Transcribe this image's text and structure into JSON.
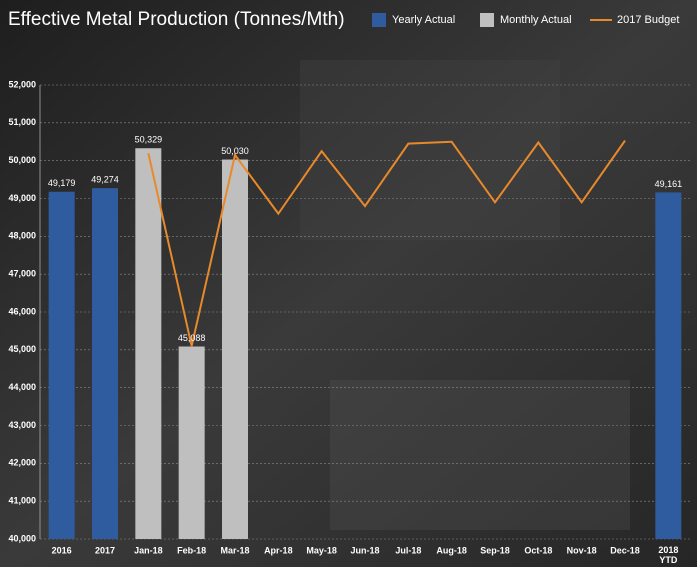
{
  "chart_data": {
    "type": "bar",
    "title": "Effective Metal Production (Tonnes/Mth)",
    "categories": [
      "2016",
      "2017",
      "Jan-18",
      "Feb-18",
      "Mar-18",
      "Apr-18",
      "May-18",
      "Jun-18",
      "Jul-18",
      "Aug-18",
      "Sep-18",
      "Oct-18",
      "Nov-18",
      "Dec-18",
      "2018 YTD"
    ],
    "series": [
      {
        "name": "Yearly Actual",
        "type": "bar",
        "color": "#2e5c9e",
        "values": [
          49179,
          49274,
          null,
          null,
          null,
          null,
          null,
          null,
          null,
          null,
          null,
          null,
          null,
          null,
          49161
        ],
        "value_labels": [
          "49,179",
          "49,274",
          null,
          null,
          null,
          null,
          null,
          null,
          null,
          null,
          null,
          null,
          null,
          null,
          "49,161"
        ]
      },
      {
        "name": "Monthly Actual",
        "type": "bar",
        "color": "#bfbfbf",
        "values": [
          null,
          null,
          50329,
          45088,
          50030,
          null,
          null,
          null,
          null,
          null,
          null,
          null,
          null,
          null,
          null
        ],
        "value_labels": [
          null,
          null,
          "50,329",
          "45,088",
          "50,030",
          null,
          null,
          null,
          null,
          null,
          null,
          null,
          null,
          null,
          null
        ]
      },
      {
        "name": "2017 Budget",
        "type": "line",
        "color": "#e8892b",
        "values": [
          null,
          null,
          50200,
          45100,
          50150,
          48600,
          50250,
          48800,
          50450,
          50500,
          48900,
          50480,
          48900,
          50530,
          null
        ]
      }
    ],
    "ylim": [
      40000,
      52000
    ],
    "yticks": [
      {
        "value": 40000,
        "label": "40,000"
      },
      {
        "value": 41000,
        "label": "41,000"
      },
      {
        "value": 42000,
        "label": "42,000"
      },
      {
        "value": 43000,
        "label": "43,000"
      },
      {
        "value": 44000,
        "label": "44,000"
      },
      {
        "value": 45000,
        "label": "45,000"
      },
      {
        "value": 46000,
        "label": "46,000"
      },
      {
        "value": 47000,
        "label": "47,000"
      },
      {
        "value": 48000,
        "label": "48,000"
      },
      {
        "value": 49000,
        "label": "49,000"
      },
      {
        "value": 50000,
        "label": "50,000"
      },
      {
        "value": 51000,
        "label": "51,000"
      },
      {
        "value": 52000,
        "label": "52,000"
      }
    ],
    "grid": true,
    "legend": "top-right"
  }
}
